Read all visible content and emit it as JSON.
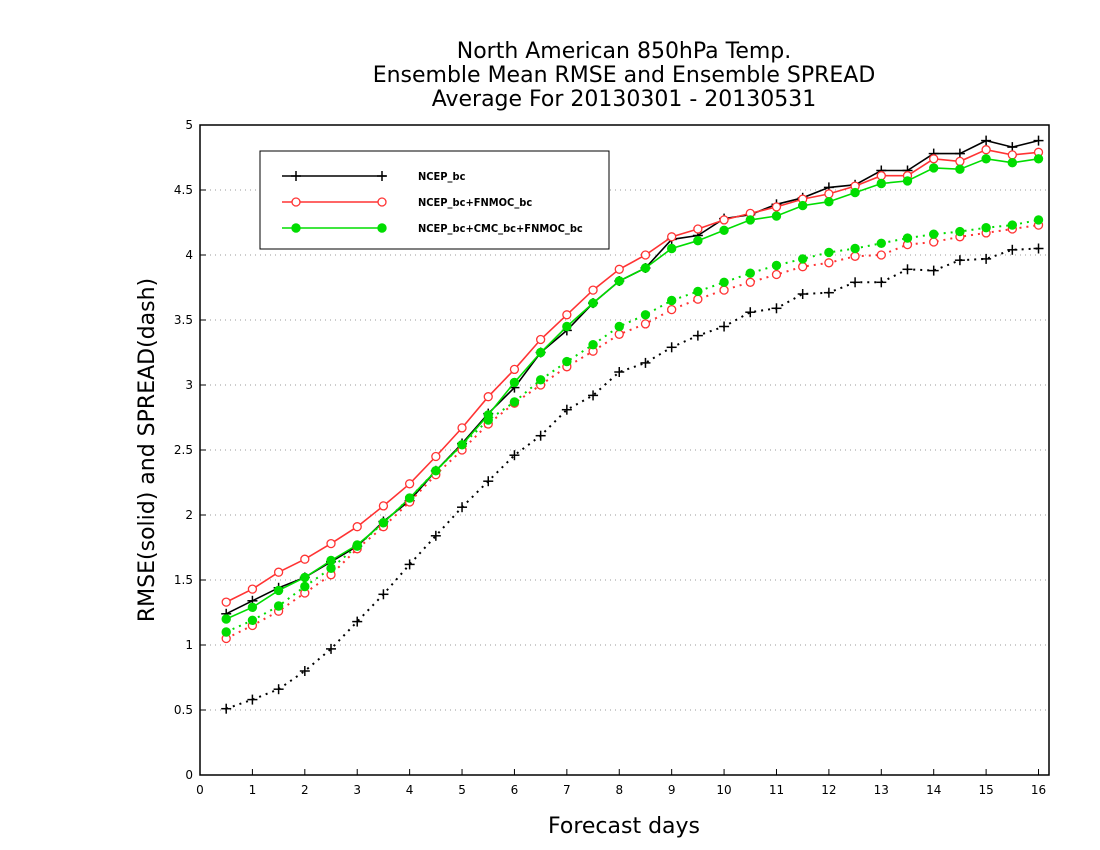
{
  "chart_data": {
    "type": "line",
    "title_lines": [
      "North American 850hPa Temp.",
      "Ensemble Mean RMSE and Ensemble SPREAD",
      "Average For 20130301 - 20130531"
    ],
    "xlabel": "Forecast days",
    "ylabel": "RMSE(solid) and SPREAD(dash)",
    "xlim": [
      0,
      16.2
    ],
    "ylim": [
      0,
      5
    ],
    "xticks": [
      "0",
      "1",
      "2",
      "3",
      "4",
      "5",
      "6",
      "7",
      "8",
      "9",
      "10",
      "11",
      "12",
      "13",
      "14",
      "15",
      "16"
    ],
    "yticks": [
      "0",
      "0.5",
      "1",
      "1.5",
      "2",
      "2.5",
      "3",
      "3.5",
      "4",
      "4.5",
      "5"
    ],
    "grid": "horizontal dotted",
    "legend_placement": "top-left",
    "x": [
      0.5,
      1,
      1.5,
      2,
      2.5,
      3,
      3.5,
      4,
      4.5,
      5,
      5.5,
      6,
      6.5,
      7,
      7.5,
      8,
      8.5,
      9,
      9.5,
      10,
      10.5,
      11,
      11.5,
      12,
      12.5,
      13,
      13.5,
      14,
      14.5,
      15,
      15.5,
      16
    ],
    "series": [
      {
        "name": "NCEP_bc",
        "style": "solid",
        "color": "#000000",
        "marker": "plus",
        "values": [
          1.24,
          1.34,
          1.44,
          1.52,
          1.64,
          1.76,
          1.95,
          2.11,
          2.34,
          2.55,
          2.78,
          2.98,
          3.25,
          3.42,
          3.63,
          3.8,
          3.9,
          4.12,
          4.15,
          4.28,
          4.31,
          4.39,
          4.44,
          4.52,
          4.54,
          4.65,
          4.65,
          4.78,
          4.78,
          4.88,
          4.83,
          4.88
        ]
      },
      {
        "name": "NCEP_bc+FNMOC_bc",
        "style": "solid",
        "color": "#ff3333",
        "marker": "open-circle",
        "values": [
          1.33,
          1.43,
          1.56,
          1.66,
          1.78,
          1.91,
          2.07,
          2.24,
          2.45,
          2.67,
          2.91,
          3.12,
          3.35,
          3.54,
          3.73,
          3.89,
          4.0,
          4.14,
          4.2,
          4.27,
          4.32,
          4.37,
          4.43,
          4.47,
          4.53,
          4.61,
          4.61,
          4.74,
          4.72,
          4.81,
          4.77,
          4.79
        ]
      },
      {
        "name": "NCEP_bc+CMC_bc+FNMOC_bc",
        "style": "solid",
        "color": "#00dd00",
        "marker": "filled-circle",
        "values": [
          1.2,
          1.29,
          1.42,
          1.52,
          1.65,
          1.77,
          1.94,
          2.13,
          2.34,
          2.54,
          2.77,
          3.02,
          3.25,
          3.45,
          3.63,
          3.8,
          3.9,
          4.05,
          4.11,
          4.19,
          4.27,
          4.3,
          4.38,
          4.41,
          4.48,
          4.55,
          4.57,
          4.67,
          4.66,
          4.74,
          4.71,
          4.74
        ]
      },
      {
        "name": "NCEP_bc spread",
        "style": "dash",
        "color": "#000000",
        "marker": "plus",
        "values": [
          0.51,
          0.58,
          0.66,
          0.8,
          0.97,
          1.18,
          1.39,
          1.62,
          1.84,
          2.06,
          2.26,
          2.46,
          2.61,
          2.81,
          2.92,
          3.1,
          3.17,
          3.29,
          3.38,
          3.45,
          3.56,
          3.59,
          3.7,
          3.71,
          3.79,
          3.79,
          3.89,
          3.88,
          3.96,
          3.97,
          4.04,
          4.05
        ]
      },
      {
        "name": "NCEP_bc+FNMOC_bc spread",
        "style": "dash",
        "color": "#ff3333",
        "marker": "open-circle",
        "values": [
          1.05,
          1.15,
          1.26,
          1.4,
          1.54,
          1.74,
          1.91,
          2.1,
          2.31,
          2.5,
          2.7,
          2.86,
          3.0,
          3.14,
          3.26,
          3.39,
          3.47,
          3.58,
          3.66,
          3.73,
          3.79,
          3.85,
          3.91,
          3.94,
          3.99,
          4.0,
          4.08,
          4.1,
          4.14,
          4.17,
          4.2,
          4.23
        ]
      },
      {
        "name": "NCEP_bc+CMC_bc+FNMOC_bc spread",
        "style": "dash",
        "color": "#00dd00",
        "marker": "filled-circle",
        "values": [
          1.1,
          1.19,
          1.3,
          1.45,
          1.59,
          1.76,
          1.94,
          2.13,
          2.34,
          2.54,
          2.73,
          2.87,
          3.04,
          3.18,
          3.31,
          3.45,
          3.54,
          3.65,
          3.72,
          3.79,
          3.86,
          3.92,
          3.97,
          4.02,
          4.05,
          4.09,
          4.13,
          4.16,
          4.18,
          4.21,
          4.23,
          4.27
        ]
      }
    ],
    "legend": [
      {
        "label": "NCEP_bc",
        "color": "#000000",
        "marker": "plus"
      },
      {
        "label": "NCEP_bc+FNMOC_bc",
        "color": "#ff3333",
        "marker": "open-circle"
      },
      {
        "label": "NCEP_bc+CMC_bc+FNMOC_bc",
        "color": "#00dd00",
        "marker": "filled-circle"
      }
    ]
  }
}
